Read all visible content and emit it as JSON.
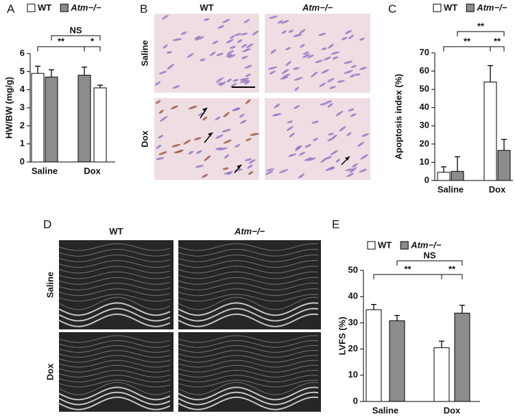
{
  "chart_data": [
    {
      "type": "bar",
      "panel": "A",
      "ylabel": "HW/BW (mg/g)",
      "categories": [
        "Saline",
        "Dox"
      ],
      "series": [
        {
          "name": "WT",
          "color": "#ffffff",
          "values": [
            4.9,
            4.1
          ],
          "errors": [
            0.4,
            0.15
          ]
        },
        {
          "name": "Atm−/−",
          "color": "#8c8c8c",
          "values": [
            4.7,
            4.8
          ],
          "errors": [
            0.4,
            0.45
          ]
        }
      ],
      "ylim": [
        0,
        6
      ],
      "yticks": [
        0,
        1,
        2,
        3,
        4,
        5,
        6
      ],
      "annotations": [
        "**",
        "*",
        "NS"
      ]
    },
    {
      "type": "bar",
      "panel": "C",
      "ylabel": "Apoptosis index (%)",
      "categories": [
        "Saline",
        "Dox"
      ],
      "series": [
        {
          "name": "WT",
          "color": "#ffffff",
          "values": [
            4.5,
            54
          ],
          "errors": [
            3,
            9
          ]
        },
        {
          "name": "Atm−/−",
          "color": "#8c8c8c",
          "values": [
            5,
            16.5
          ],
          "errors": [
            8,
            6
          ]
        }
      ],
      "ylim": [
        0,
        70
      ],
      "yticks": [
        0,
        10,
        20,
        30,
        40,
        50,
        60,
        70
      ],
      "annotations": [
        "**",
        "**",
        "**"
      ]
    },
    {
      "type": "bar",
      "panel": "E",
      "ylabel": "LVFS (%)",
      "categories": [
        "Saline",
        "Dox"
      ],
      "series": [
        {
          "name": "WT",
          "color": "#ffffff",
          "values": [
            35,
            20.5
          ],
          "errors": [
            2,
            2.5
          ]
        },
        {
          "name": "Atm−/−",
          "color": "#8c8c8c",
          "values": [
            30.8,
            33.7
          ],
          "errors": [
            2,
            3
          ]
        }
      ],
      "ylim": [
        0,
        50
      ],
      "yticks": [
        0,
        10,
        20,
        30,
        40,
        50
      ],
      "annotations": [
        "**",
        "**",
        "NS"
      ]
    }
  ],
  "image_panels": [
    {
      "panel": "B",
      "columns": [
        "WT",
        "Atm−/−"
      ],
      "rows": [
        "Saline",
        "Dox"
      ]
    },
    {
      "panel": "D",
      "columns": [
        "WT",
        "Atm−/−"
      ],
      "rows": [
        "Saline",
        "Dox"
      ]
    }
  ]
}
